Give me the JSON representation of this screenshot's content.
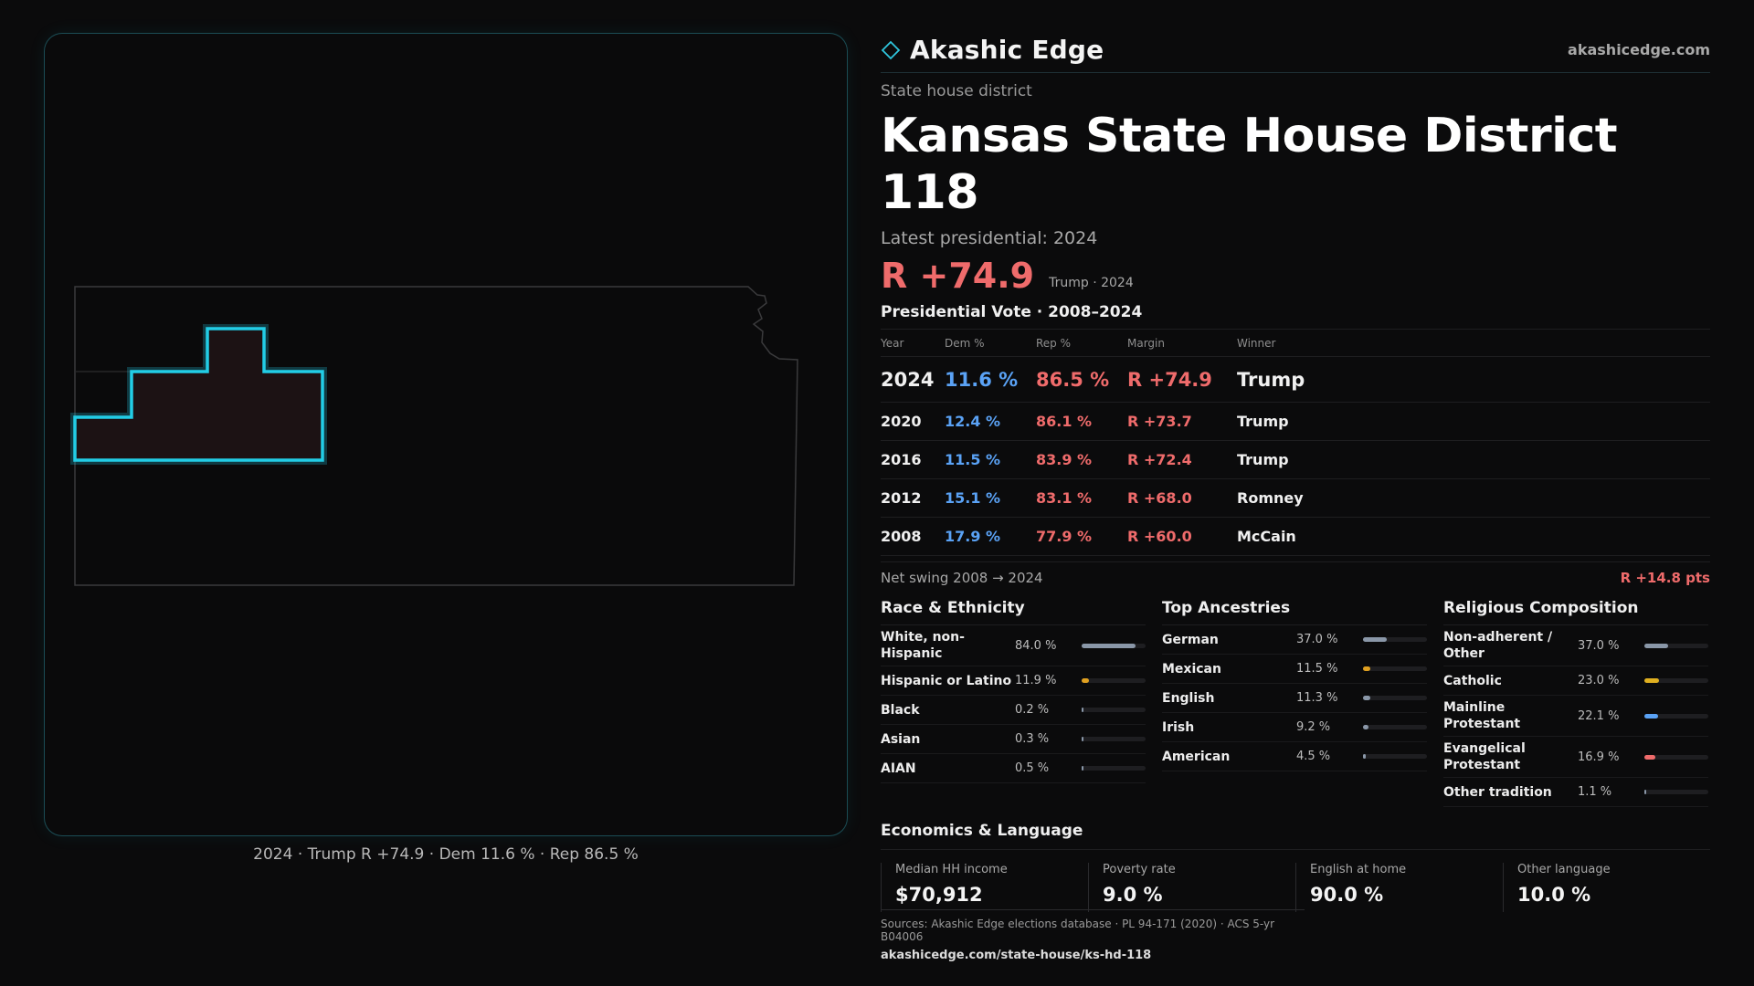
{
  "brand": {
    "name": "Akashic Edge",
    "url": "akashicedge.com",
    "accent": "#2fc6dd",
    "logo_icon": "diamond-outline-icon"
  },
  "map": {
    "state_outline_color": "#3a3a3c",
    "district_stroke": "#22cde6",
    "district_fill": "#1c1214",
    "caption": "2024 · Trump R +74.9 · Dem 11.6 % · Rep 86.5 %"
  },
  "header": {
    "kicker": "State house district",
    "title": "Kansas State House District 118",
    "latest_label": "Latest presidential: 2024",
    "margin": "R +74.9",
    "margin_note": "Trump · 2024"
  },
  "colors": {
    "dem": "#5aa2f5",
    "rep": "#ef6b6b"
  },
  "presidential": {
    "title": "Presidential Vote · 2008–2024",
    "columns": [
      "Year",
      "Dem %",
      "Rep %",
      "Margin",
      "Winner"
    ],
    "rows": [
      {
        "year": "2024",
        "dem": "11.6 %",
        "rep": "86.5 %",
        "margin": "R +74.9",
        "winner": "Trump"
      },
      {
        "year": "2020",
        "dem": "12.4 %",
        "rep": "86.1 %",
        "margin": "R +73.7",
        "winner": "Trump"
      },
      {
        "year": "2016",
        "dem": "11.5 %",
        "rep": "83.9 %",
        "margin": "R +72.4",
        "winner": "Trump"
      },
      {
        "year": "2012",
        "dem": "15.1 %",
        "rep": "83.1 %",
        "margin": "R +68.0",
        "winner": "Romney"
      },
      {
        "year": "2008",
        "dem": "17.9 %",
        "rep": "77.9 %",
        "margin": "R +60.0",
        "winner": "McCain"
      }
    ],
    "swing_label": "Net swing 2008 → 2024",
    "swing_value": "R +14.8 pts"
  },
  "demographics": [
    {
      "title": "Race & Ethnicity",
      "items": [
        {
          "label": "White, non-Hispanic",
          "value": "84.0 %",
          "share": 0.84,
          "color": "#8a97a8"
        },
        {
          "label": "Hispanic or Latino",
          "value": "11.9 %",
          "share": 0.119,
          "color": "#e0a020"
        },
        {
          "label": "Black",
          "value": "0.2 %",
          "share": 0.002,
          "color": "#8a97a8"
        },
        {
          "label": "Asian",
          "value": "0.3 %",
          "share": 0.003,
          "color": "#8a97a8"
        },
        {
          "label": "AIAN",
          "value": "0.5 %",
          "share": 0.005,
          "color": "#8a97a8"
        }
      ]
    },
    {
      "title": "Top Ancestries",
      "items": [
        {
          "label": "German",
          "value": "37.0 %",
          "share": 0.37,
          "color": "#8a97a8"
        },
        {
          "label": "Mexican",
          "value": "11.5 %",
          "share": 0.115,
          "color": "#e0a020"
        },
        {
          "label": "English",
          "value": "11.3 %",
          "share": 0.113,
          "color": "#8a97a8"
        },
        {
          "label": "Irish",
          "value": "9.2 %",
          "share": 0.092,
          "color": "#8a97a8"
        },
        {
          "label": "American",
          "value": "4.5 %",
          "share": 0.045,
          "color": "#8a97a8"
        }
      ]
    },
    {
      "title": "Religious Composition",
      "items": [
        {
          "label": "Non-adherent / Other",
          "value": "37.0 %",
          "share": 0.37,
          "color": "#8a97a8"
        },
        {
          "label": "Catholic",
          "value": "23.0 %",
          "share": 0.23,
          "color": "#e0b020"
        },
        {
          "label": "Mainline Protestant",
          "value": "22.1 %",
          "share": 0.221,
          "color": "#5aa2f5"
        },
        {
          "label": "Evangelical Protestant",
          "value": "16.9 %",
          "share": 0.169,
          "color": "#ef6b6b"
        },
        {
          "label": "Other tradition",
          "value": "1.1 %",
          "share": 0.011,
          "color": "#8a97a8"
        }
      ]
    }
  ],
  "economics": {
    "title": "Economics & Language",
    "items": [
      {
        "label": "Median HH income",
        "value": "$70,912"
      },
      {
        "label": "Poverty rate",
        "value": "9.0 %"
      },
      {
        "label": "English at home",
        "value": "90.0 %"
      },
      {
        "label": "Other language",
        "value": "10.0 %"
      }
    ]
  },
  "footer": {
    "sources": "Sources: Akashic Edge elections database · PL 94-171 (2020) · ACS 5-yr B04006",
    "url": "akashicedge.com/state-house/ks-hd-118"
  }
}
